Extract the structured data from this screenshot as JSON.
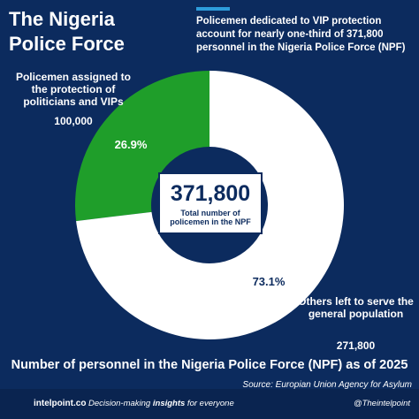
{
  "chart_data": {
    "type": "pie",
    "title": "The Nigeria Police Force",
    "subtitle": "Policemen dedicated to VIP protection account for nearly one-third of 371,800 personnel in the Nigeria Police Force (NPF)",
    "categories": [
      "Policemen assigned to the protection of politicians and VIPs",
      "Others left to serve the general population"
    ],
    "values": [
      100000,
      271800
    ],
    "value_labels": [
      "100,000",
      "271,800"
    ],
    "percentages": [
      26.9,
      73.1
    ],
    "percentage_labels": [
      "26.9%",
      "73.1%"
    ],
    "colors": [
      "#1f9e2a",
      "#ffffff"
    ],
    "total": 371800,
    "total_label": "371,800",
    "total_caption": "Total number of policemen in the NPF",
    "chart_title": "Number of personnel in the Nigeria Police Force (NPF) as of 2025",
    "source": "Source: Europian Union Agency for Asylum"
  },
  "footer": {
    "site": "intelpoint.co",
    "tagline_start": "Decision-making ",
    "tagline_emphasis": "insights",
    "tagline_end": " for everyone",
    "handle": "@Theintelpoint"
  }
}
